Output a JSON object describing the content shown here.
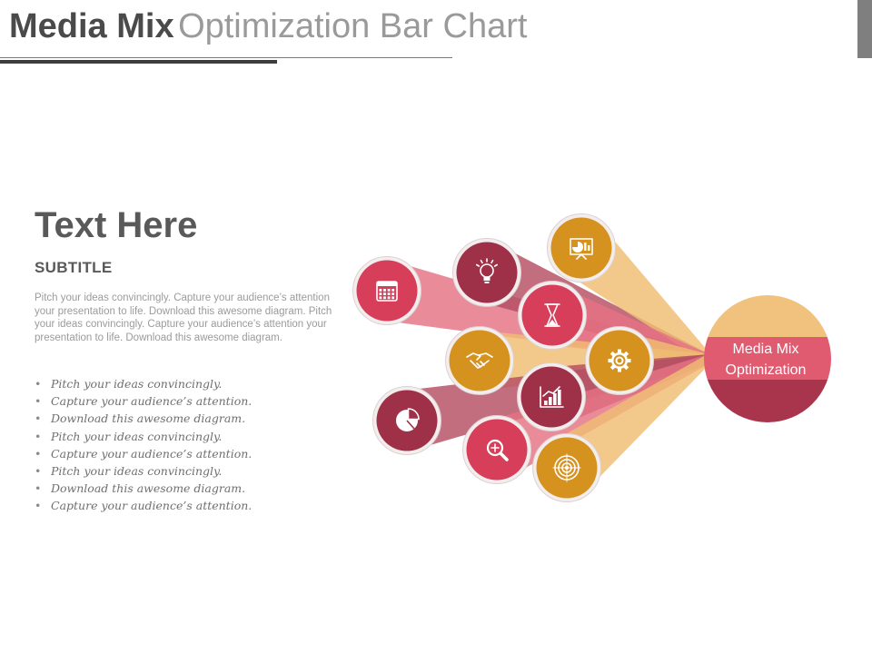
{
  "header": {
    "title_bold": "Media Mix",
    "title_light": "Optimization Bar Chart"
  },
  "content": {
    "heading": "Text Here",
    "subtitle": "SUBTITLE",
    "paragraph": "Pitch your ideas convincingly. Capture your audience’s attention your presentation to life. Download this awesome diagram. Pitch your ideas convincingly. Capture your audience’s attention your presentation to life. Download this awesome diagram.",
    "bullets": [
      "Pitch your ideas convincingly.",
      "Capture your audience’s attention.",
      "Download this awesome diagram.",
      "Pitch your ideas convincingly.",
      "Capture your audience’s attention.",
      "Pitch your ideas convincingly.",
      "Download this awesome diagram.",
      "Capture your audience’s attention."
    ]
  },
  "diagram": {
    "hub_line1": "Media Mix",
    "hub_line2": "Optimization",
    "colors": {
      "pink": "#d63e5a",
      "maroon": "#9e3048",
      "gold": "#d6921f",
      "peach": "#f0c27e",
      "hub_top": "#f0c27e",
      "hub_band": "#e05a70",
      "hub_bottom": "#a8354c"
    },
    "nodes": [
      {
        "icon": "calendar-icon",
        "color": "pink"
      },
      {
        "icon": "lightbulb-icon",
        "color": "maroon"
      },
      {
        "icon": "presentation-chart-icon",
        "color": "gold"
      },
      {
        "icon": "hourglass-icon",
        "color": "pink"
      },
      {
        "icon": "handshake-icon",
        "color": "gold"
      },
      {
        "icon": "gear-icon",
        "color": "gold"
      },
      {
        "icon": "bar-chart-icon",
        "color": "maroon"
      },
      {
        "icon": "pie-chart-icon",
        "color": "maroon"
      },
      {
        "icon": "magnifier-icon",
        "color": "pink"
      },
      {
        "icon": "target-icon",
        "color": "gold"
      }
    ]
  }
}
